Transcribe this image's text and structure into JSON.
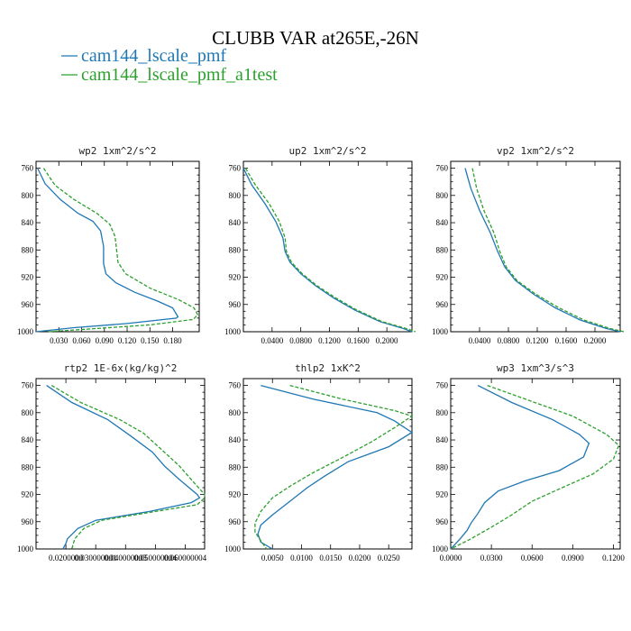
{
  "figure": {
    "title": "CLUBB VAR at265E,-26N",
    "legend": [
      {
        "label": "cam144_lscale_pmf",
        "color": "#1f77b4",
        "dashed": false
      },
      {
        "label": "cam144_lscale_pmf_a1test",
        "color": "#2ca02c",
        "dashed": true
      }
    ]
  },
  "chart_data": [
    {
      "type": "line",
      "title": "wp2  1xm^2/s^2",
      "ylim": [
        1000,
        750
      ],
      "yticks": [
        760,
        800,
        840,
        880,
        920,
        960,
        1000
      ],
      "xlim": [
        0.0,
        0.215
      ],
      "xticks": [
        0.03,
        0.06,
        0.09,
        0.12,
        0.15,
        0.18
      ],
      "xtick_labels": [
        "0.030",
        "0.060",
        "0.090",
        "0.120",
        "0.150",
        "0.180"
      ],
      "series": [
        {
          "name": "cam144_lscale_pmf",
          "color": "#1f77b4",
          "points": [
            [
              0.002,
              760
            ],
            [
              0.012,
              783
            ],
            [
              0.032,
              806
            ],
            [
              0.055,
              826
            ],
            [
              0.075,
              838
            ],
            [
              0.085,
              852
            ],
            [
              0.089,
              875
            ],
            [
              0.089,
              900
            ],
            [
              0.092,
              915
            ],
            [
              0.105,
              928
            ],
            [
              0.13,
              942
            ],
            [
              0.16,
              955
            ],
            [
              0.18,
              965
            ],
            [
              0.187,
              978
            ],
            [
              0.185,
              980
            ],
            [
              0.12,
              988
            ],
            [
              0.05,
              994
            ],
            [
              0.0,
              1000
            ]
          ]
        },
        {
          "name": "cam144_lscale_pmf_a1test",
          "color": "#2ca02c",
          "points": [
            [
              0.01,
              760
            ],
            [
              0.025,
              785
            ],
            [
              0.05,
              806
            ],
            [
              0.08,
              826
            ],
            [
              0.097,
              842
            ],
            [
              0.104,
              860
            ],
            [
              0.106,
              878
            ],
            [
              0.108,
              898
            ],
            [
              0.118,
              915
            ],
            [
              0.15,
              936
            ],
            [
              0.188,
              953
            ],
            [
              0.208,
              965
            ],
            [
              0.213,
              975
            ],
            [
              0.207,
              982
            ],
            [
              0.15,
              990
            ],
            [
              0.07,
              996
            ],
            [
              0.015,
              1000
            ]
          ]
        }
      ]
    },
    {
      "type": "line",
      "title": "up2  1xm^2/s^2",
      "ylim": [
        1000,
        750
      ],
      "yticks": [
        760,
        800,
        840,
        880,
        920,
        960,
        1000
      ],
      "xlim": [
        0.0,
        0.235
      ],
      "xticks": [
        0.04,
        0.08,
        0.12,
        0.16,
        0.2
      ],
      "xtick_labels": [
        "0.0400",
        "0.0800",
        "0.1200",
        "0.1600",
        "0.2000"
      ],
      "series": [
        {
          "name": "cam144_lscale_pmf",
          "color": "#1f77b4",
          "points": [
            [
              0.0,
              760
            ],
            [
              0.012,
              785
            ],
            [
              0.03,
              812
            ],
            [
              0.045,
              838
            ],
            [
              0.055,
              862
            ],
            [
              0.058,
              882
            ],
            [
              0.065,
              898
            ],
            [
              0.08,
              915
            ],
            [
              0.1,
              932
            ],
            [
              0.125,
              950
            ],
            [
              0.155,
              968
            ],
            [
              0.19,
              985
            ],
            [
              0.222,
              995
            ],
            [
              0.235,
              1000
            ]
          ]
        },
        {
          "name": "cam144_lscale_pmf_a1test",
          "color": "#2ca02c",
          "points": [
            [
              0.003,
              760
            ],
            [
              0.017,
              785
            ],
            [
              0.036,
              812
            ],
            [
              0.05,
              838
            ],
            [
              0.058,
              862
            ],
            [
              0.06,
              882
            ],
            [
              0.067,
              898
            ],
            [
              0.082,
              915
            ],
            [
              0.102,
              932
            ],
            [
              0.128,
              950
            ],
            [
              0.158,
              968
            ],
            [
              0.193,
              985
            ],
            [
              0.226,
              995
            ],
            [
              0.24,
              1000
            ]
          ]
        }
      ]
    },
    {
      "type": "line",
      "title": "vp2  1xm^2/s^2",
      "ylim": [
        1000,
        750
      ],
      "yticks": [
        760,
        800,
        840,
        880,
        920,
        960,
        1000
      ],
      "xlim": [
        0.0,
        0.235
      ],
      "xticks": [
        0.04,
        0.08,
        0.12,
        0.16,
        0.2
      ],
      "xtick_labels": [
        "0.0400",
        "0.0800",
        "0.1200",
        "0.1600",
        "0.2000"
      ],
      "series": [
        {
          "name": "cam144_lscale_pmf",
          "color": "#1f77b4",
          "points": [
            [
              0.02,
              760
            ],
            [
              0.028,
              790
            ],
            [
              0.04,
              822
            ],
            [
              0.055,
              855
            ],
            [
              0.065,
              882
            ],
            [
              0.075,
              905
            ],
            [
              0.09,
              925
            ],
            [
              0.115,
              945
            ],
            [
              0.145,
              965
            ],
            [
              0.18,
              983
            ],
            [
              0.215,
              995
            ],
            [
              0.235,
              1000
            ]
          ]
        },
        {
          "name": "cam144_lscale_pmf_a1test",
          "color": "#2ca02c",
          "points": [
            [
              0.03,
              760
            ],
            [
              0.036,
              790
            ],
            [
              0.046,
              822
            ],
            [
              0.06,
              855
            ],
            [
              0.068,
              882
            ],
            [
              0.077,
              905
            ],
            [
              0.092,
              925
            ],
            [
              0.118,
              945
            ],
            [
              0.15,
              965
            ],
            [
              0.185,
              983
            ],
            [
              0.22,
              995
            ],
            [
              0.24,
              1000
            ]
          ]
        }
      ]
    },
    {
      "type": "line",
      "title": "rtp2  1E-6x(kg/kg)^2",
      "ylim": [
        1000,
        750
      ],
      "yticks": [
        760,
        800,
        840,
        880,
        920,
        960,
        1000
      ],
      "xlim": [
        0.01,
        0.0665
      ],
      "xticks": [
        0.02,
        0.03,
        0.04,
        0.05,
        0.06
      ],
      "xtick_labels": [
        "0.0200000",
        "0.030000001",
        "0.040000003",
        "0.050000004",
        "0.060000004"
      ],
      "series": [
        {
          "name": "cam144_lscale_pmf",
          "color": "#1f77b4",
          "points": [
            [
              0.0135,
              760
            ],
            [
              0.022,
              785
            ],
            [
              0.034,
              810
            ],
            [
              0.042,
              835
            ],
            [
              0.049,
              858
            ],
            [
              0.053,
              878
            ],
            [
              0.058,
              898
            ],
            [
              0.064,
              920
            ],
            [
              0.0648,
              925
            ],
            [
              0.062,
              932
            ],
            [
              0.048,
              945
            ],
            [
              0.03,
              958
            ],
            [
              0.024,
              970
            ],
            [
              0.0205,
              985
            ],
            [
              0.02,
              992
            ],
            [
              0.019,
              1000
            ]
          ]
        },
        {
          "name": "cam144_lscale_pmf_a1test",
          "color": "#2ca02c",
          "points": [
            [
              0.0152,
              760
            ],
            [
              0.025,
              785
            ],
            [
              0.038,
              810
            ],
            [
              0.046,
              830
            ],
            [
              0.053,
              858
            ],
            [
              0.058,
              878
            ],
            [
              0.062,
              898
            ],
            [
              0.0665,
              920
            ],
            [
              0.0665,
              925
            ],
            [
              0.064,
              935
            ],
            [
              0.05,
              945
            ],
            [
              0.032,
              958
            ],
            [
              0.026,
              970
            ],
            [
              0.023,
              985
            ],
            [
              0.0225,
              992
            ],
            [
              0.022,
              1000
            ]
          ]
        }
      ]
    },
    {
      "type": "line",
      "title": "thlp2  1xK^2",
      "ylim": [
        1000,
        750
      ],
      "yticks": [
        760,
        800,
        840,
        880,
        920,
        960,
        1000
      ],
      "xlim": [
        0.0,
        0.029
      ],
      "xticks": [
        0.005,
        0.01,
        0.015,
        0.02,
        0.025
      ],
      "xtick_labels": [
        "0.0050",
        "0.0100",
        "0.0150",
        "0.0200",
        "0.0250"
      ],
      "series": [
        {
          "name": "cam144_lscale_pmf",
          "color": "#1f77b4",
          "points": [
            [
              0.003,
              760
            ],
            [
              0.012,
              780
            ],
            [
              0.023,
              800
            ],
            [
              0.026,
              812
            ],
            [
              0.029,
              829
            ],
            [
              0.025,
              850
            ],
            [
              0.018,
              872
            ],
            [
              0.014,
              893
            ],
            [
              0.011,
              910
            ],
            [
              0.008,
              930
            ],
            [
              0.005,
              950
            ],
            [
              0.003,
              965
            ],
            [
              0.0025,
              978
            ],
            [
              0.003,
              990
            ],
            [
              0.005,
              1000
            ]
          ]
        },
        {
          "name": "cam144_lscale_pmf_a1test",
          "color": "#2ca02c",
          "points": [
            [
              0.008,
              760
            ],
            [
              0.017,
              780
            ],
            [
              0.026,
              797
            ],
            [
              0.029,
              805
            ],
            [
              0.026,
              822
            ],
            [
              0.022,
              843
            ],
            [
              0.017,
              866
            ],
            [
              0.012,
              888
            ],
            [
              0.008,
              908
            ],
            [
              0.005,
              925
            ],
            [
              0.003,
              945
            ],
            [
              0.002,
              962
            ],
            [
              0.002,
              975
            ],
            [
              0.003,
              988
            ],
            [
              0.004,
              1000
            ]
          ]
        }
      ]
    },
    {
      "type": "line",
      "title": "wp3  1xm^3/s^3",
      "ylim": [
        1000,
        750
      ],
      "yticks": [
        760,
        800,
        840,
        880,
        920,
        960,
        1000
      ],
      "xlim": [
        0.0,
        0.125
      ],
      "xticks": [
        0.0,
        0.03,
        0.06,
        0.09,
        0.12
      ],
      "xtick_labels": [
        "0.0000",
        "0.0300",
        "0.0600",
        "0.0900",
        "0.1200"
      ],
      "series": [
        {
          "name": "cam144_lscale_pmf",
          "color": "#1f77b4",
          "points": [
            [
              0.02,
              760
            ],
            [
              0.045,
              785
            ],
            [
              0.075,
              810
            ],
            [
              0.095,
              832
            ],
            [
              0.102,
              845
            ],
            [
              0.098,
              865
            ],
            [
              0.08,
              885
            ],
            [
              0.055,
              900
            ],
            [
              0.035,
              915
            ],
            [
              0.025,
              932
            ],
            [
              0.02,
              948
            ],
            [
              0.015,
              962
            ],
            [
              0.012,
              973
            ],
            [
              0.007,
              985
            ],
            [
              0.0,
              1000
            ]
          ]
        },
        {
          "name": "cam144_lscale_pmf_a1test",
          "color": "#2ca02c",
          "points": [
            [
              0.027,
              760
            ],
            [
              0.055,
              780
            ],
            [
              0.09,
              805
            ],
            [
              0.115,
              832
            ],
            [
              0.124,
              848
            ],
            [
              0.12,
              868
            ],
            [
              0.105,
              890
            ],
            [
              0.08,
              912
            ],
            [
              0.06,
              930
            ],
            [
              0.045,
              950
            ],
            [
              0.03,
              968
            ],
            [
              0.015,
              985
            ],
            [
              0.0,
              1000
            ]
          ]
        }
      ]
    }
  ]
}
